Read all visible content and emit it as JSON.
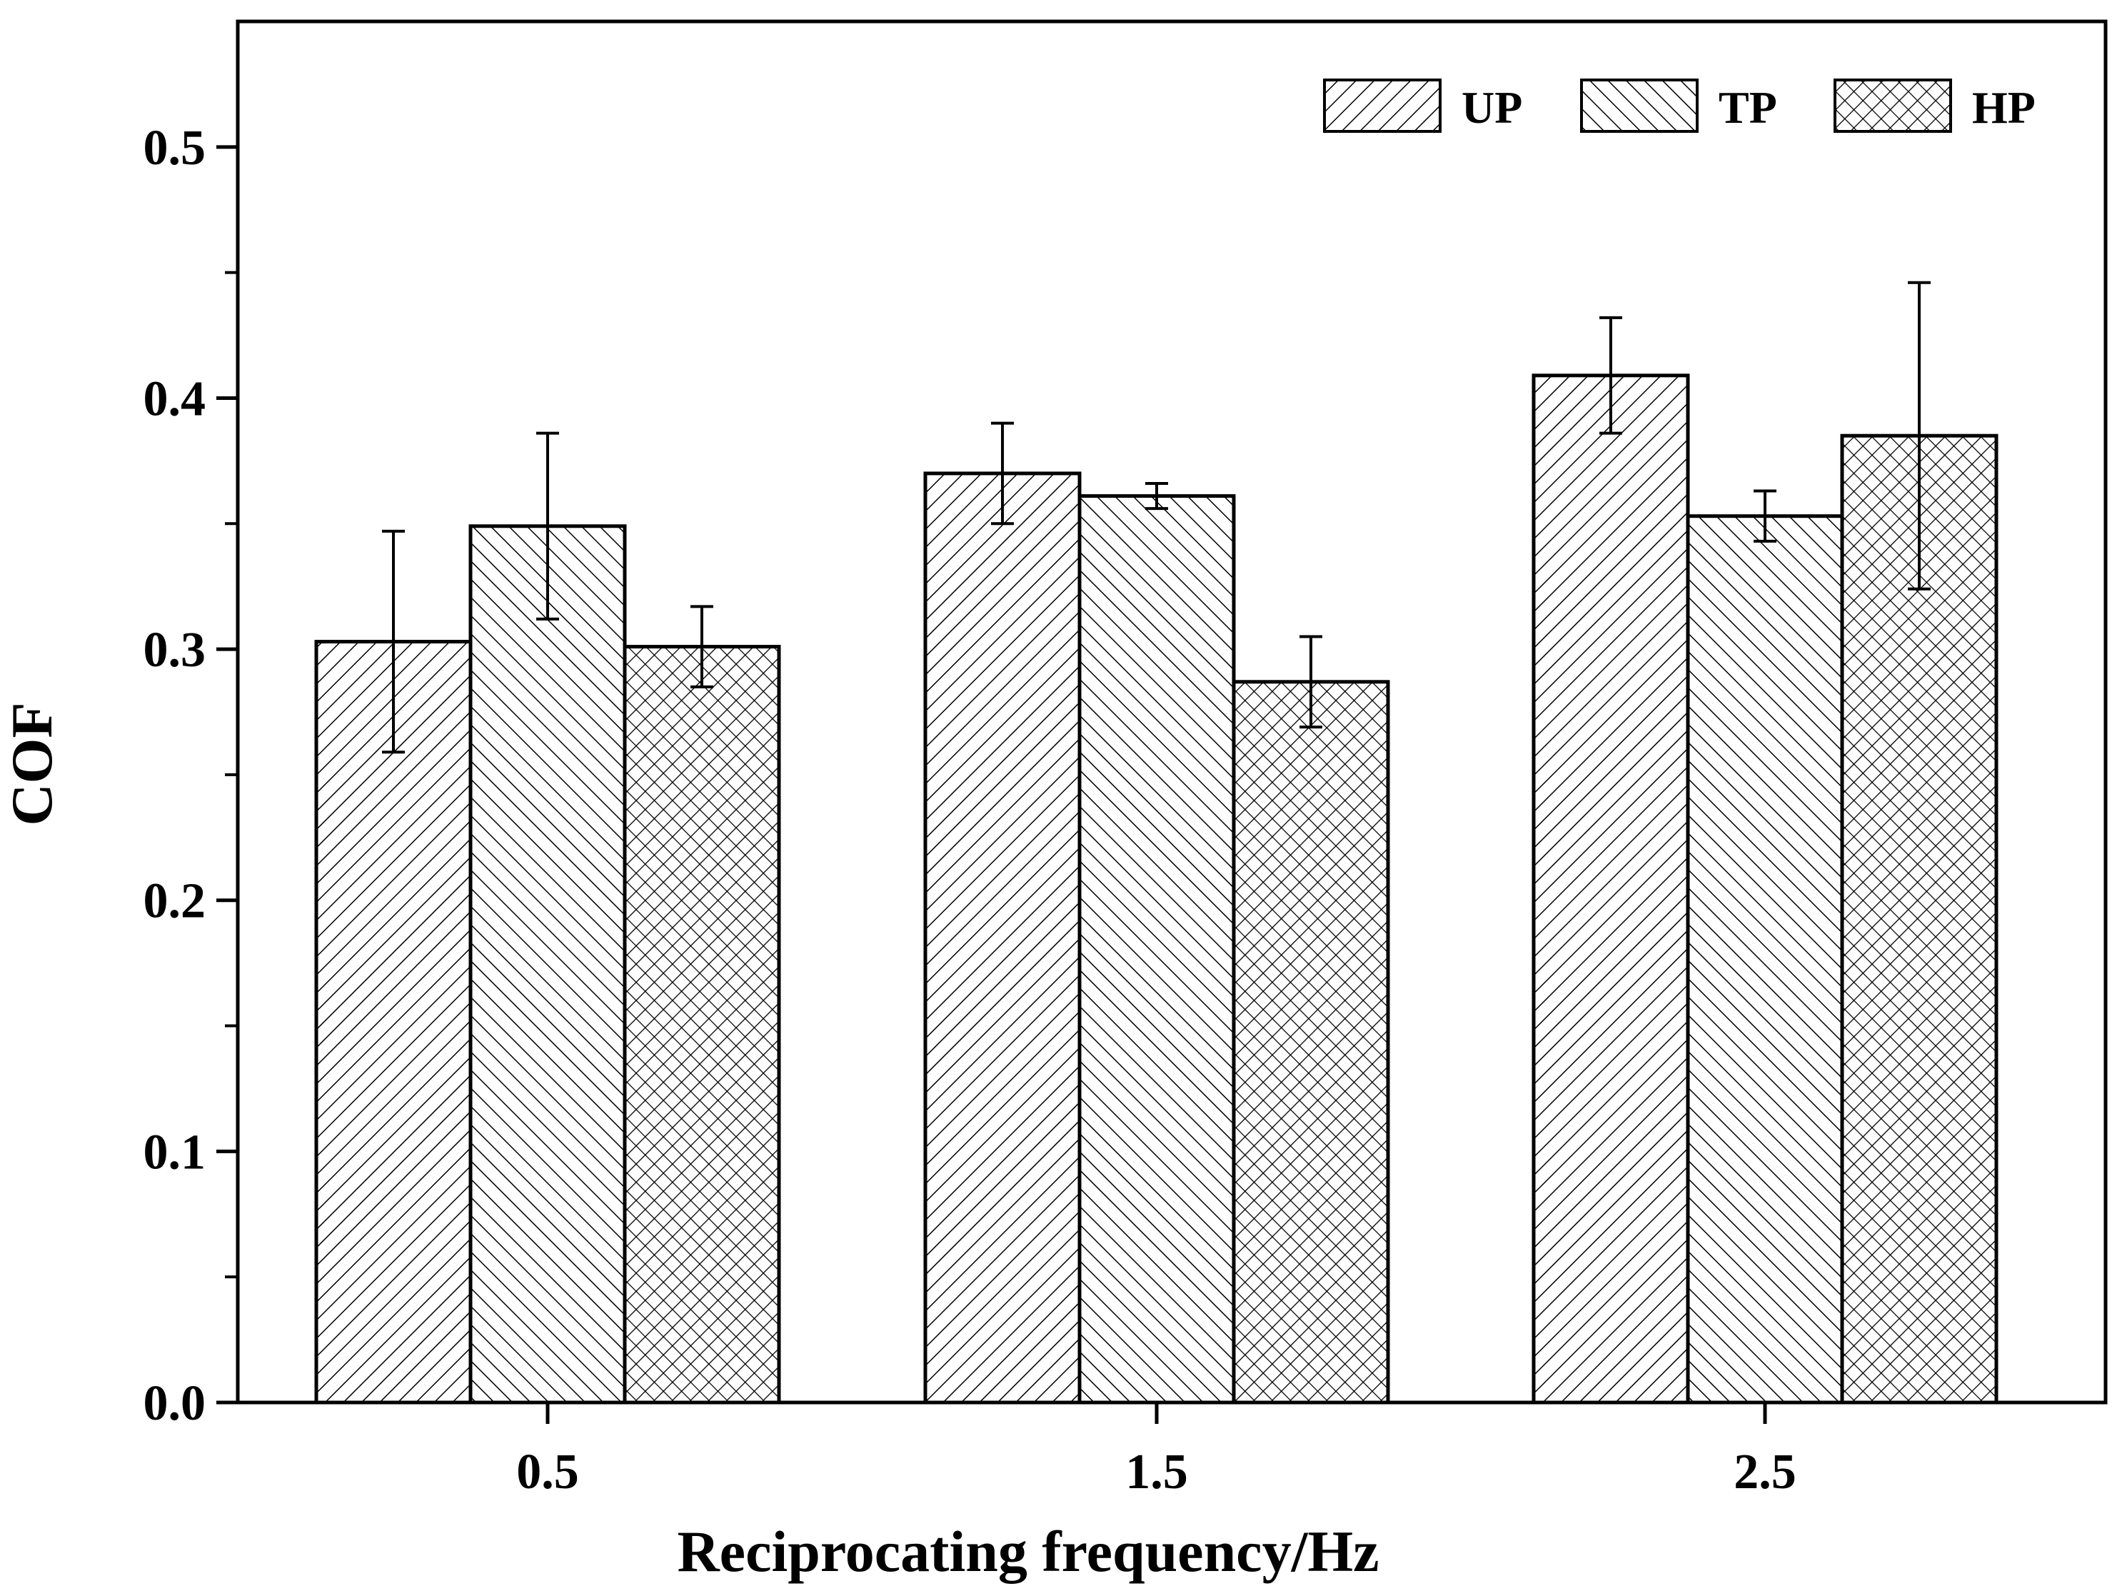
{
  "colors": {
    "axis": "#000000",
    "bar_stroke": "#000000",
    "background": "#ffffff"
  },
  "chart_data": {
    "type": "bar",
    "title": "",
    "xlabel": "Reciprocating frequency/Hz",
    "ylabel": "COF",
    "categories": [
      "0.5",
      "1.5",
      "2.5"
    ],
    "ylim": [
      0,
      0.55
    ],
    "yticks": [
      0.0,
      0.1,
      0.2,
      0.3,
      0.4,
      0.5
    ],
    "ytick_labels": [
      "0.0",
      "0.1",
      "0.2",
      "0.3",
      "0.4",
      "0.5"
    ],
    "legend_position": "top-right",
    "grid": false,
    "series": [
      {
        "name": "UP",
        "pattern": "hatch-forward",
        "values": [
          0.303,
          0.37,
          0.409
        ],
        "errors": [
          0.044,
          0.02,
          0.023
        ]
      },
      {
        "name": "TP",
        "pattern": "hatch-back",
        "values": [
          0.349,
          0.361,
          0.353
        ],
        "errors": [
          0.037,
          0.005,
          0.01
        ]
      },
      {
        "name": "HP",
        "pattern": "crosshatch",
        "values": [
          0.301,
          0.287,
          0.385
        ],
        "errors": [
          0.016,
          0.018,
          0.061
        ]
      }
    ]
  }
}
